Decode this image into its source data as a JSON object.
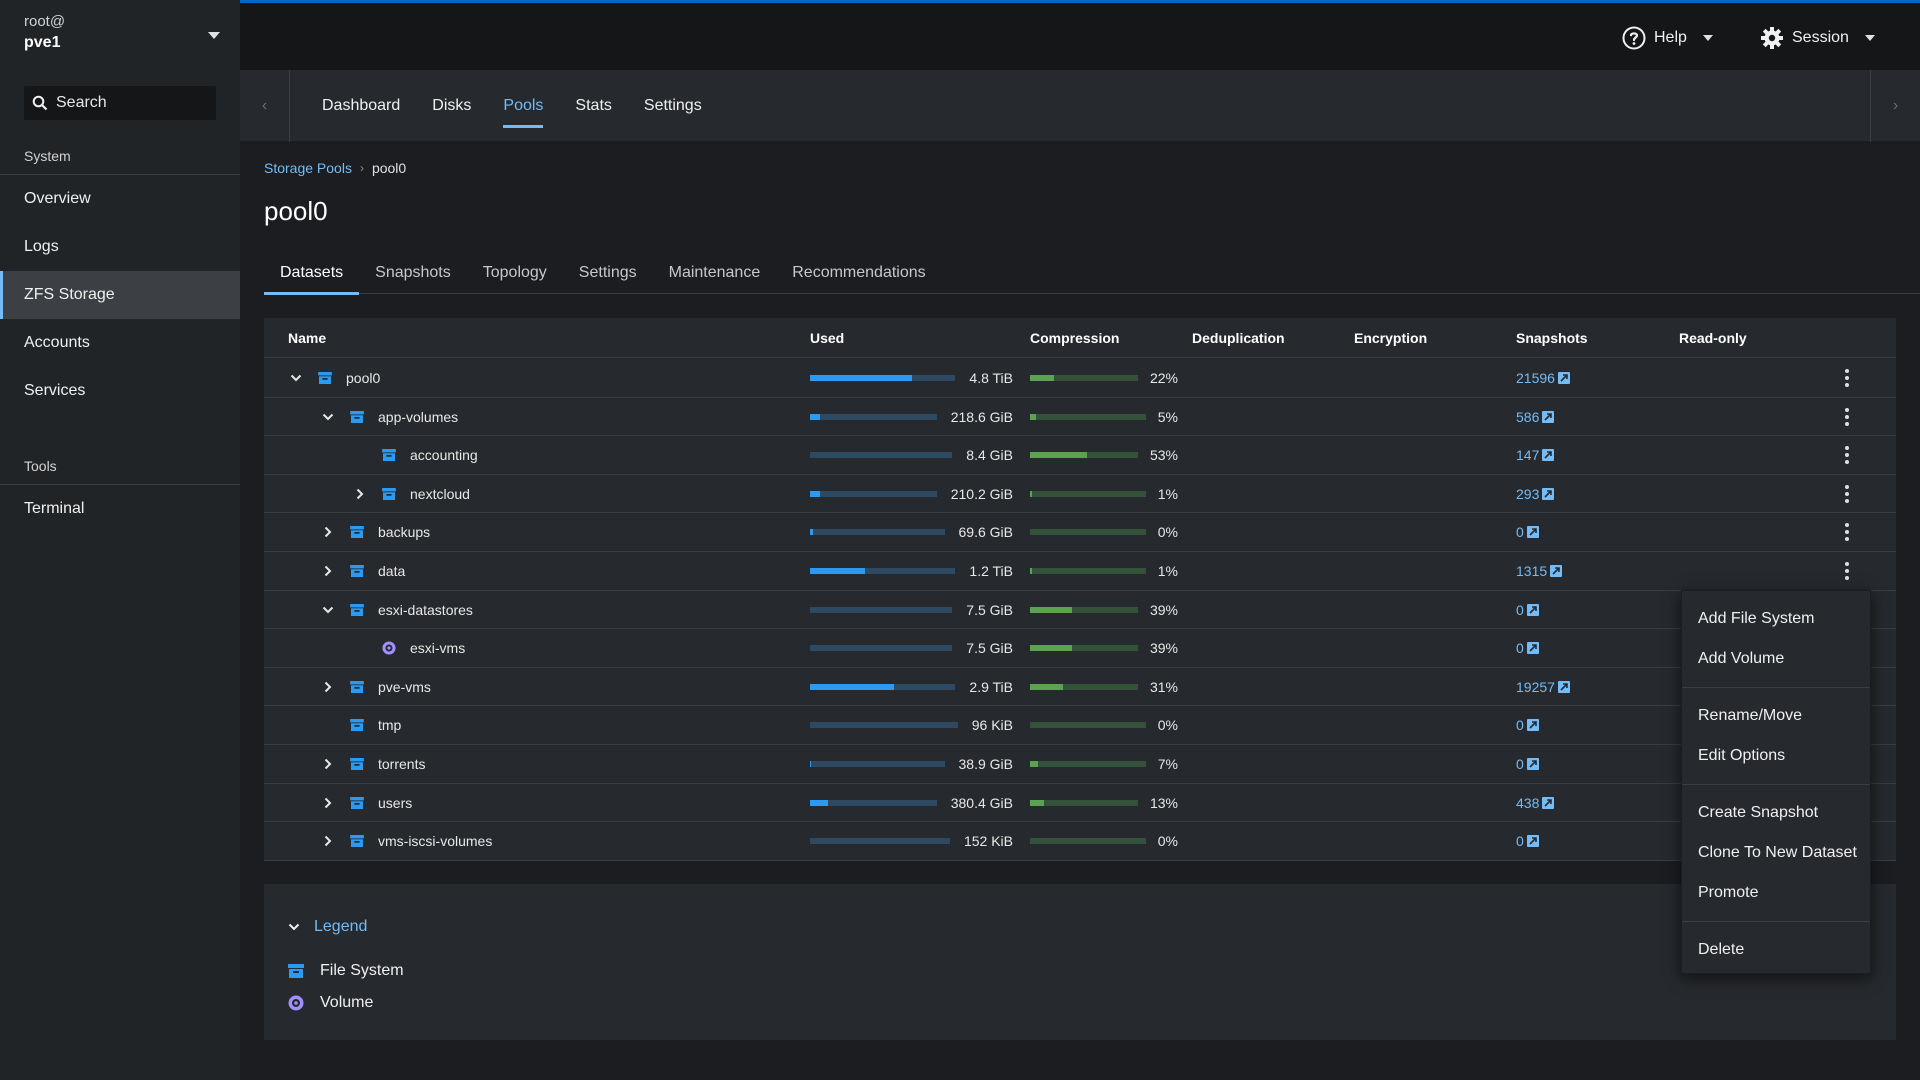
{
  "sidebar": {
    "user": "root@",
    "host": "pve1",
    "search_label": "Search",
    "groups": [
      {
        "title": "System",
        "items": [
          "Overview",
          "Logs",
          "ZFS Storage",
          "Accounts",
          "Services"
        ]
      },
      {
        "title": "Tools",
        "items": [
          "Terminal"
        ]
      }
    ],
    "active_item": "ZFS Storage"
  },
  "header": {
    "help_label": "Help",
    "session_label": "Session"
  },
  "subnav": {
    "tabs": [
      "Dashboard",
      "Disks",
      "Pools",
      "Stats",
      "Settings"
    ],
    "active_tab": "Pools"
  },
  "breadcrumb": {
    "parent": "Storage Pools",
    "current": "pool0"
  },
  "page_title": "pool0",
  "pool_tabs": [
    "Datasets",
    "Snapshots",
    "Topology",
    "Settings",
    "Maintenance",
    "Recommendations"
  ],
  "active_pool_tab": "Datasets",
  "table": {
    "columns": [
      "Name",
      "Used",
      "Compression",
      "Deduplication",
      "Encryption",
      "Snapshots",
      "Read-only"
    ],
    "rows": [
      {
        "name": "pool0",
        "level": 0,
        "toggle": "expanded",
        "type": "filesystem",
        "used": "4.8 TiB",
        "used_pct": 70,
        "compression": "22%",
        "comp_pct": 22,
        "snapshots": "21596",
        "menu": true
      },
      {
        "name": "app-volumes",
        "level": 1,
        "toggle": "expanded",
        "type": "filesystem",
        "used": "218.6 GiB",
        "used_pct": 8,
        "compression": "5%",
        "comp_pct": 5,
        "snapshots": "586",
        "menu": true
      },
      {
        "name": "accounting",
        "level": 2,
        "toggle": "none",
        "type": "filesystem",
        "used": "8.4 GiB",
        "used_pct": 0,
        "compression": "53%",
        "comp_pct": 53,
        "snapshots": "147",
        "menu": true
      },
      {
        "name": "nextcloud",
        "level": 2,
        "toggle": "collapsed",
        "type": "filesystem",
        "used": "210.2 GiB",
        "used_pct": 8,
        "compression": "1%",
        "comp_pct": 1,
        "snapshots": "293",
        "menu": true
      },
      {
        "name": "backups",
        "level": 1,
        "toggle": "collapsed",
        "type": "filesystem",
        "used": "69.6 GiB",
        "used_pct": 2,
        "compression": "0%",
        "comp_pct": 0,
        "snapshots": "0",
        "menu": true
      },
      {
        "name": "data",
        "level": 1,
        "toggle": "collapsed",
        "type": "filesystem",
        "used": "1.2 TiB",
        "used_pct": 38,
        "compression": "1%",
        "comp_pct": 1,
        "snapshots": "1315",
        "menu": true
      },
      {
        "name": "esxi-datastores",
        "level": 1,
        "toggle": "expanded",
        "type": "filesystem",
        "used": "7.5 GiB",
        "used_pct": 0,
        "compression": "39%",
        "comp_pct": 39,
        "snapshots": "0",
        "menu": false
      },
      {
        "name": "esxi-vms",
        "level": 2,
        "toggle": "none",
        "type": "volume",
        "used": "7.5 GiB",
        "used_pct": 0,
        "compression": "39%",
        "comp_pct": 39,
        "snapshots": "0",
        "menu": false
      },
      {
        "name": "pve-vms",
        "level": 1,
        "toggle": "collapsed",
        "type": "filesystem",
        "used": "2.9 TiB",
        "used_pct": 58,
        "compression": "31%",
        "comp_pct": 31,
        "snapshots": "19257",
        "menu": false
      },
      {
        "name": "tmp",
        "level": 1,
        "toggle": "none",
        "type": "filesystem",
        "used": "96 KiB",
        "used_pct": 0,
        "compression": "0%",
        "comp_pct": 0,
        "snapshots": "0",
        "menu": false
      },
      {
        "name": "torrents",
        "level": 1,
        "toggle": "collapsed",
        "type": "filesystem",
        "used": "38.9 GiB",
        "used_pct": 1,
        "compression": "7%",
        "comp_pct": 7,
        "snapshots": "0",
        "menu": false
      },
      {
        "name": "users",
        "level": 1,
        "toggle": "collapsed",
        "type": "filesystem",
        "used": "380.4 GiB",
        "used_pct": 14,
        "compression": "13%",
        "comp_pct": 13,
        "snapshots": "438",
        "menu": false
      },
      {
        "name": "vms-iscsi-volumes",
        "level": 1,
        "toggle": "collapsed",
        "type": "filesystem",
        "used": "152 KiB",
        "used_pct": 0,
        "compression": "0%",
        "comp_pct": 0,
        "snapshots": "0",
        "menu": false
      }
    ]
  },
  "legend": {
    "toggle_label": "Legend",
    "items": [
      {
        "label": "File System",
        "icon": "filesystem-icon"
      },
      {
        "label": "Volume",
        "icon": "volume-icon"
      }
    ]
  },
  "context_menu": {
    "groups": [
      [
        "Add File System",
        "Add Volume"
      ],
      [
        "Rename/Move",
        "Edit Options"
      ],
      [
        "Create Snapshot",
        "Clone To New Dataset",
        "Promote"
      ],
      [
        "Delete"
      ]
    ]
  },
  "colors": {
    "accent": "#73bcf7",
    "used_bar": "#2b9af3",
    "compression_bar": "#5ba352",
    "filesystem_icon": "#2b9af3",
    "volume_icon": "#a18fff"
  }
}
